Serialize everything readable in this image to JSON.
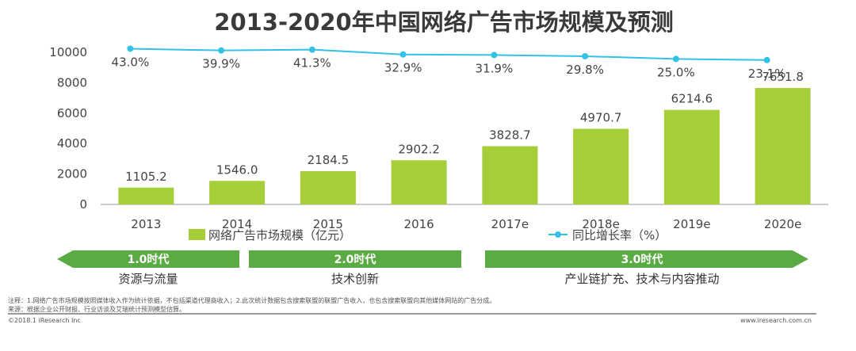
{
  "colors": {
    "bar": "#a6ce39",
    "line": "#33c1e6",
    "arrow": "#5bab45",
    "axis": "#999999"
  },
  "chart_data": {
    "type": "bar",
    "title": "2013-2020年中国网络广告市场规模及预测",
    "categories": [
      "2013",
      "2014",
      "2015",
      "2016",
      "2017e",
      "2018e",
      "2019e",
      "2020e"
    ],
    "series": [
      {
        "name": "网络广告市场规模（亿元）",
        "type": "bar",
        "values": [
          1105.2,
          1546.0,
          2184.5,
          2902.2,
          3828.7,
          4970.7,
          6214.6,
          7651.8
        ],
        "value_labels": [
          "1105.2",
          "1546.0",
          "2184.5",
          "2902.2",
          "3828.7",
          "4970.7",
          "6214.6",
          "7651.8"
        ]
      },
      {
        "name": "同比增长率（%）",
        "type": "line",
        "values": [
          43.0,
          39.9,
          41.3,
          32.9,
          31.9,
          29.8,
          25.0,
          23.1
        ],
        "value_labels": [
          "43.0%",
          "39.9%",
          "41.3%",
          "32.9%",
          "31.9%",
          "29.8%",
          "25.0%",
          "23.1%"
        ]
      }
    ],
    "ylim": [
      0,
      10000
    ],
    "yticks": [
      0,
      2000,
      4000,
      6000,
      8000,
      10000
    ],
    "legend_position": "bottom"
  },
  "eras": [
    {
      "label": "1.0时代",
      "desc": "资源与流量"
    },
    {
      "label": "2.0时代",
      "desc": "技术创新"
    },
    {
      "label": "3.0时代",
      "desc": "产业链扩充、技术与内容推动"
    }
  ],
  "footer": {
    "note": "注释：1.网络广告市场规模按照媒体收入作为统计依据，不包括渠道代理商收入；2.此次统计数据包含搜索联盟的联盟广告收入，也包含搜索联盟向其他媒体网站的广告分成。",
    "source": "来源：根据企业公开财报、行业访谈及艾瑞统计预测模型估算。",
    "copyright": "©2018.1 iResearch Inc",
    "website": "www.iresearch.com.cn"
  }
}
